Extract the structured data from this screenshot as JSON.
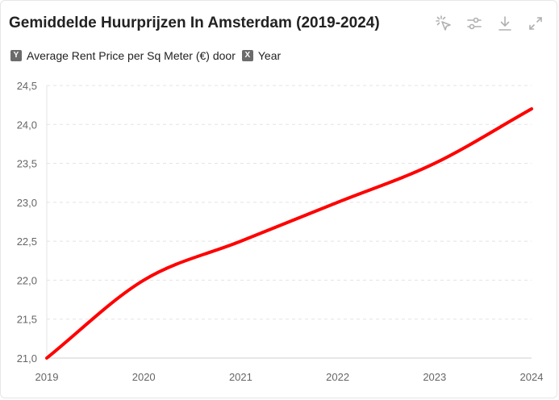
{
  "header": {
    "title": "Gemiddelde Huurprijzen In Amsterdam (2019-2024)"
  },
  "toolbar": {
    "items": [
      {
        "icon": "magic-select-icon"
      },
      {
        "icon": "sliders-icon"
      },
      {
        "icon": "download-icon"
      },
      {
        "icon": "expand-icon"
      }
    ]
  },
  "axis_chips": {
    "y_badge": "Y",
    "y_text": "Average Rent Price per Sq Meter (€) door",
    "x_badge": "X",
    "x_text": "Year"
  },
  "chart_data": {
    "type": "line",
    "title": "Gemiddelde Huurprijzen In Amsterdam (2019-2024)",
    "xlabel": "Year",
    "ylabel": "Average Rent Price per Sq Meter (€)",
    "x": [
      "2019",
      "2020",
      "2021",
      "2022",
      "2023",
      "2024"
    ],
    "series": [
      {
        "values": [
          21.0,
          22.0,
          22.5,
          23.0,
          23.5,
          24.2
        ],
        "color": "#ff0000"
      }
    ],
    "ylim": [
      21.0,
      24.5
    ],
    "yticks": [
      "21,0",
      "21,5",
      "22,0",
      "22,5",
      "23,0",
      "23,5",
      "24,0",
      "24,5"
    ],
    "grid": true,
    "grid_style": "dashed-horizontal"
  }
}
